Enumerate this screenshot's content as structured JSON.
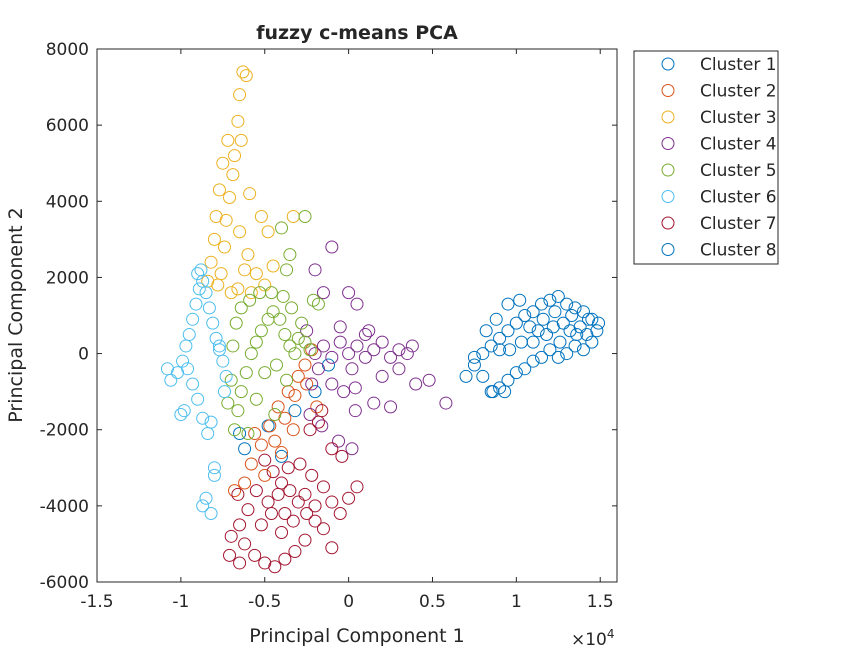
{
  "chart_data": {
    "type": "scatter",
    "title": "fuzzy c-means PCA",
    "xlabel": "Principal Component 1",
    "ylabel": "Principal Component 2",
    "x_exponent_label": "×10",
    "x_exponent": "4",
    "x_scale_factor": 10000,
    "xlim": [
      -15000,
      16000
    ],
    "ylim": [
      -6000,
      8000
    ],
    "xticks": [
      -15000,
      -10000,
      -5000,
      0,
      5000,
      10000,
      15000
    ],
    "xtick_labels": [
      "-1.5",
      "-1",
      "-0.5",
      "0",
      "0.5",
      "1",
      "1.5"
    ],
    "yticks": [
      -6000,
      -4000,
      -2000,
      0,
      2000,
      4000,
      6000,
      8000
    ],
    "ytick_labels": [
      "-6000",
      "-4000",
      "-2000",
      "0",
      "2000",
      "4000",
      "6000",
      "8000"
    ],
    "grid": false,
    "legend_position": "outside-top-right",
    "marker": "open-circle",
    "series": [
      {
        "name": "Cluster 1",
        "color": "#0072BD",
        "points": [
          [
            -6500,
            -2100
          ],
          [
            -4800,
            -1900
          ],
          [
            -3200,
            -1500
          ],
          [
            -2000,
            -1000
          ],
          [
            -1200,
            -300
          ],
          [
            -4000,
            -2700
          ],
          [
            -6200,
            -2500
          ]
        ]
      },
      {
        "name": "Cluster 2",
        "color": "#D95319",
        "points": [
          [
            -5800,
            -2900
          ],
          [
            -5200,
            -2400
          ],
          [
            -4700,
            -1900
          ],
          [
            -4200,
            -1400
          ],
          [
            -3600,
            -1000
          ],
          [
            -3000,
            -600
          ],
          [
            -2600,
            -300
          ],
          [
            -2200,
            100
          ],
          [
            -5000,
            -3200
          ],
          [
            -4400,
            -2300
          ],
          [
            -3800,
            -1700
          ],
          [
            -3200,
            -1100
          ],
          [
            -6200,
            -3400
          ],
          [
            -6800,
            -3600
          ],
          [
            -2500,
            -800
          ],
          [
            -1900,
            -1400
          ],
          [
            -5600,
            -2100
          ],
          [
            -4000,
            -2600
          ],
          [
            -3300,
            -2000
          ]
        ]
      },
      {
        "name": "Cluster 3",
        "color": "#EDB120",
        "points": [
          [
            -7600,
            2100
          ],
          [
            -7400,
            2800
          ],
          [
            -7300,
            3500
          ],
          [
            -7100,
            4100
          ],
          [
            -6900,
            4700
          ],
          [
            -6800,
            5200
          ],
          [
            -6600,
            6100
          ],
          [
            -6500,
            6800
          ],
          [
            -6300,
            7400
          ],
          [
            -6100,
            7300
          ],
          [
            -8200,
            2400
          ],
          [
            -8000,
            3000
          ],
          [
            -7900,
            3600
          ],
          [
            -7700,
            4300
          ],
          [
            -7500,
            5000
          ],
          [
            -7200,
            5600
          ],
          [
            -6500,
            3200
          ],
          [
            -6000,
            2600
          ],
          [
            -5500,
            2100
          ],
          [
            -5000,
            1800
          ],
          [
            -4500,
            2300
          ],
          [
            -4800,
            3200
          ],
          [
            -5200,
            3600
          ],
          [
            -5900,
            4200
          ],
          [
            -6400,
            5600
          ],
          [
            -7800,
            1800
          ],
          [
            -7000,
            1600
          ],
          [
            -6600,
            1700
          ],
          [
            -8400,
            1900
          ],
          [
            -3300,
            3600
          ],
          [
            -6200,
            2200
          ],
          [
            -5800,
            1600
          ]
        ]
      },
      {
        "name": "Cluster 4",
        "color": "#7E2F8E",
        "points": [
          [
            -2000,
            0
          ],
          [
            -1500,
            200
          ],
          [
            -1000,
            -100
          ],
          [
            -500,
            300
          ],
          [
            0,
            0
          ],
          [
            500,
            200
          ],
          [
            1000,
            -100
          ],
          [
            1500,
            100
          ],
          [
            2000,
            300
          ],
          [
            2500,
            -100
          ],
          [
            3000,
            100
          ],
          [
            3500,
            0
          ],
          [
            3800,
            200
          ],
          [
            -1800,
            -400
          ],
          [
            -1000,
            -800
          ],
          [
            -300,
            -1000
          ],
          [
            400,
            -900
          ],
          [
            -2300,
            -1600
          ],
          [
            -1600,
            -1900
          ],
          [
            -600,
            -2300
          ],
          [
            200,
            -2500
          ],
          [
            400,
            -1500
          ],
          [
            1500,
            -1300
          ],
          [
            2500,
            -1400
          ],
          [
            4000,
            -800
          ],
          [
            4800,
            -700
          ],
          [
            5800,
            -1300
          ],
          [
            -1000,
            2800
          ],
          [
            0,
            1600
          ],
          [
            500,
            1300
          ],
          [
            -2000,
            2200
          ],
          [
            -1500,
            1600
          ],
          [
            -500,
            700
          ],
          [
            1000,
            500
          ],
          [
            2000,
            -600
          ],
          [
            3000,
            -400
          ],
          [
            -2500,
            600
          ],
          [
            -2200,
            -800
          ],
          [
            200,
            -400
          ],
          [
            1200,
            600
          ]
        ]
      },
      {
        "name": "Cluster 5",
        "color": "#77AC30",
        "points": [
          [
            -6800,
            -2000
          ],
          [
            -6600,
            -1500
          ],
          [
            -6400,
            -1000
          ],
          [
            -6100,
            -500
          ],
          [
            -5800,
            0
          ],
          [
            -5500,
            300
          ],
          [
            -5200,
            600
          ],
          [
            -4800,
            900
          ],
          [
            -4500,
            1100
          ],
          [
            -4100,
            900
          ],
          [
            -3800,
            500
          ],
          [
            -3500,
            200
          ],
          [
            -3200,
            0
          ],
          [
            -3000,
            400
          ],
          [
            -2600,
            300
          ],
          [
            -2300,
            100
          ],
          [
            -7200,
            -1300
          ],
          [
            -7000,
            -700
          ],
          [
            -6900,
            200
          ],
          [
            -6700,
            800
          ],
          [
            -6400,
            1200
          ],
          [
            -5900,
            1400
          ],
          [
            -5300,
            1600
          ],
          [
            -4600,
            1600
          ],
          [
            -3900,
            1500
          ],
          [
            -3400,
            1200
          ],
          [
            -2800,
            800
          ],
          [
            -5000,
            -500
          ],
          [
            -4300,
            -300
          ],
          [
            -3700,
            -700
          ],
          [
            -5500,
            -1200
          ],
          [
            -4400,
            -1600
          ],
          [
            -6000,
            -2100
          ],
          [
            -3500,
            2600
          ],
          [
            -3700,
            2200
          ],
          [
            -2100,
            1400
          ],
          [
            -1800,
            1300
          ],
          [
            -4000,
            3300
          ],
          [
            -2600,
            3600
          ]
        ]
      },
      {
        "name": "Cluster 6",
        "color": "#4DBEEE",
        "points": [
          [
            -10200,
            -500
          ],
          [
            -9900,
            -200
          ],
          [
            -9700,
            200
          ],
          [
            -9500,
            500
          ],
          [
            -9300,
            900
          ],
          [
            -9100,
            1300
          ],
          [
            -8900,
            1700
          ],
          [
            -8700,
            1900
          ],
          [
            -8500,
            1600
          ],
          [
            -8300,
            1200
          ],
          [
            -8100,
            800
          ],
          [
            -7900,
            400
          ],
          [
            -7700,
            100
          ],
          [
            -7500,
            -200
          ],
          [
            -7300,
            -600
          ],
          [
            -9600,
            -400
          ],
          [
            -9300,
            -800
          ],
          [
            -9000,
            -1200
          ],
          [
            -8700,
            -1700
          ],
          [
            -8400,
            -2100
          ],
          [
            -8200,
            -1800
          ],
          [
            -10000,
            -1600
          ],
          [
            -9800,
            -1500
          ],
          [
            -10800,
            -400
          ],
          [
            -10600,
            -700
          ],
          [
            -9000,
            2100
          ],
          [
            -8800,
            2200
          ],
          [
            -8000,
            -3000
          ],
          [
            -8000,
            -3200
          ],
          [
            -8500,
            -3800
          ],
          [
            -8700,
            -4000
          ],
          [
            -8200,
            -4200
          ],
          [
            -7700,
            200
          ],
          [
            -7400,
            -1000
          ]
        ]
      },
      {
        "name": "Cluster 7",
        "color": "#A2142F",
        "points": [
          [
            -5000,
            -2800
          ],
          [
            -4500,
            -3100
          ],
          [
            -4000,
            -3400
          ],
          [
            -3500,
            -3600
          ],
          [
            -3000,
            -3900
          ],
          [
            -2500,
            -4200
          ],
          [
            -2000,
            -4400
          ],
          [
            -1500,
            -4600
          ],
          [
            -5500,
            -3600
          ],
          [
            -6000,
            -4100
          ],
          [
            -6500,
            -4500
          ],
          [
            -7000,
            -4800
          ],
          [
            -6200,
            -5000
          ],
          [
            -5600,
            -5300
          ],
          [
            -5000,
            -5500
          ],
          [
            -4400,
            -5600
          ],
          [
            -3800,
            -5400
          ],
          [
            -3200,
            -5200
          ],
          [
            -2600,
            -4900
          ],
          [
            -2000,
            -4000
          ],
          [
            -1500,
            -3500
          ],
          [
            -1000,
            -3900
          ],
          [
            -500,
            -4200
          ],
          [
            0,
            -3800
          ],
          [
            500,
            -3500
          ],
          [
            -400,
            -2700
          ],
          [
            -1000,
            -2500
          ],
          [
            -1800,
            -1800
          ],
          [
            -1600,
            -1500
          ],
          [
            -2300,
            -2000
          ],
          [
            -4600,
            -4200
          ],
          [
            -4000,
            -4700
          ],
          [
            -3300,
            -4400
          ],
          [
            -3600,
            -3000
          ],
          [
            -2900,
            -2900
          ],
          [
            -2200,
            -3200
          ],
          [
            -5200,
            -4500
          ],
          [
            -4200,
            -3700
          ],
          [
            -3800,
            -4200
          ],
          [
            -4800,
            -3900
          ],
          [
            -2600,
            -3700
          ],
          [
            -7100,
            -5300
          ],
          [
            -6500,
            -5500
          ],
          [
            -1000,
            -5100
          ],
          [
            -6600,
            -3700
          ]
        ]
      },
      {
        "name": "Cluster 8",
        "color": "#0072BD",
        "points": [
          [
            7000,
            -600
          ],
          [
            7500,
            -300
          ],
          [
            8000,
            0
          ],
          [
            8500,
            200
          ],
          [
            9000,
            400
          ],
          [
            9500,
            600
          ],
          [
            10000,
            800
          ],
          [
            10500,
            1000
          ],
          [
            11000,
            1100
          ],
          [
            11500,
            1300
          ],
          [
            12000,
            1400
          ],
          [
            12500,
            1500
          ],
          [
            13000,
            1300
          ],
          [
            13500,
            1200
          ],
          [
            14000,
            1100
          ],
          [
            14500,
            900
          ],
          [
            14800,
            600
          ],
          [
            14500,
            300
          ],
          [
            14000,
            100
          ],
          [
            13500,
            200
          ],
          [
            13000,
            0
          ],
          [
            12500,
            -100
          ],
          [
            12000,
            100
          ],
          [
            11500,
            -100
          ],
          [
            11000,
            -200
          ],
          [
            10500,
            -400
          ],
          [
            10000,
            -500
          ],
          [
            9500,
            -700
          ],
          [
            9000,
            -900
          ],
          [
            8500,
            -1000
          ],
          [
            8000,
            -600
          ],
          [
            7500,
            -100
          ],
          [
            8200,
            600
          ],
          [
            8800,
            900
          ],
          [
            9500,
            1300
          ],
          [
            10200,
            1400
          ],
          [
            10800,
            700
          ],
          [
            11300,
            600
          ],
          [
            11800,
            500
          ],
          [
            12200,
            700
          ],
          [
            12800,
            800
          ],
          [
            13200,
            600
          ],
          [
            13800,
            700
          ],
          [
            14200,
            500
          ],
          [
            9300,
            -1000
          ],
          [
            8600,
            -1000
          ],
          [
            9000,
            100
          ],
          [
            9600,
            100
          ],
          [
            10300,
            300
          ],
          [
            11000,
            300
          ],
          [
            11600,
            900
          ],
          [
            12300,
            1100
          ],
          [
            13300,
            1000
          ],
          [
            14300,
            900
          ],
          [
            14900,
            800
          ],
          [
            12600,
            300
          ],
          [
            13600,
            500
          ]
        ]
      }
    ]
  }
}
